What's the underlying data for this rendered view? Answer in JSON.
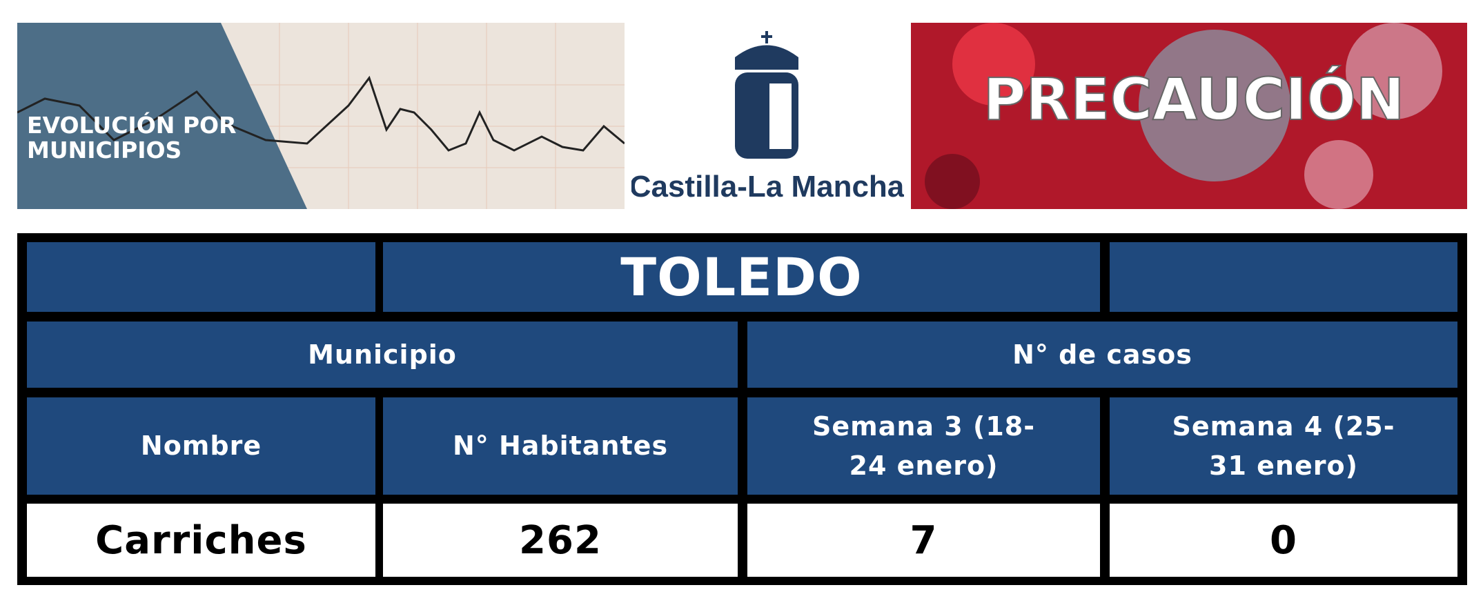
{
  "banners": {
    "left": "EVOLUCIÓN POR MUNICIPIOS",
    "logo": "Castilla-La Mancha",
    "right": "PRECAUCIÓN"
  },
  "table": {
    "title": "TOLEDO",
    "groups": [
      "Municipio",
      "N° de casos"
    ],
    "columns": [
      "Nombre",
      "N° Habitantes",
      "Semana 3 (18-24 enero)",
      "Semana 4 (25-31 enero)"
    ],
    "rows": [
      [
        "Carriches",
        "262",
        "7",
        "0"
      ]
    ]
  }
}
